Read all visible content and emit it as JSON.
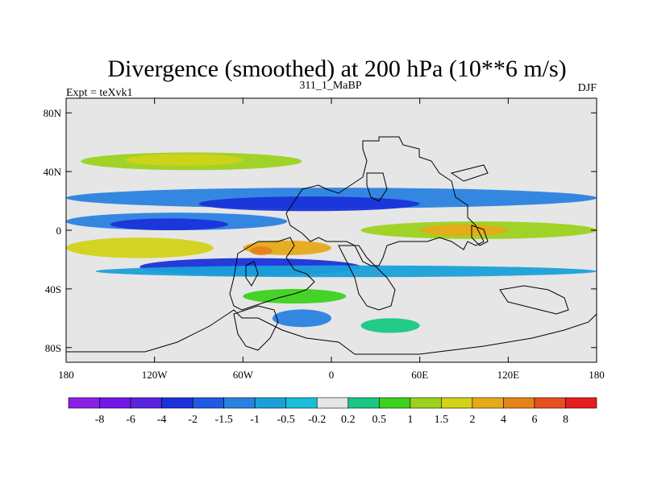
{
  "chart_data": {
    "type": "heatmap",
    "title": "Divergence (smoothed) at 200 hPa (10**6 m/s)",
    "subtitle": "311_1_MaBP",
    "left_label": "Expt = teXvk1",
    "right_label": "DJF",
    "x_axis": {
      "range": [
        -180,
        180
      ],
      "ticks": [
        {
          "value": -180,
          "label": "180"
        },
        {
          "value": -120,
          "label": "120W"
        },
        {
          "value": -60,
          "label": "60W"
        },
        {
          "value": 0,
          "label": "0"
        },
        {
          "value": 60,
          "label": "60E"
        },
        {
          "value": 120,
          "label": "120E"
        },
        {
          "value": 180,
          "label": "180"
        }
      ]
    },
    "y_axis": {
      "range": [
        -90,
        90
      ],
      "ticks": [
        {
          "value": 80,
          "label": "80N"
        },
        {
          "value": 40,
          "label": "40N"
        },
        {
          "value": 0,
          "label": "0"
        },
        {
          "value": -40,
          "label": "40S"
        },
        {
          "value": -80,
          "label": "80S"
        }
      ]
    },
    "colorbar": {
      "colors": [
        "#8c1fe6",
        "#7318e6",
        "#5a23e0",
        "#1a32d9",
        "#1f5ae6",
        "#2a82e0",
        "#1aa0d9",
        "#1abed9",
        "#e6e6e6",
        "#19c882",
        "#3cd21e",
        "#9bd21e",
        "#d2d219",
        "#e6aa19",
        "#e68219",
        "#e6501e",
        "#e61e1e"
      ],
      "labels": [
        "-8",
        "-6",
        "-4",
        "-2",
        "-1.5",
        "-1",
        "-0.5",
        "-0.2",
        "0.2",
        "0.5",
        "1",
        "1.5",
        "2",
        "4",
        "6",
        "8"
      ]
    },
    "bands": [
      {
        "lat_center": 47,
        "lat_half_width": 6,
        "lon_range": [
          -170,
          -20
        ],
        "value": 1.2
      },
      {
        "lat_center": 48,
        "lat_half_width": 4,
        "lon_range": [
          -140,
          -60
        ],
        "value": 1.8
      },
      {
        "lat_center": 22,
        "lat_half_width": 7,
        "lon_range": [
          -180,
          180
        ],
        "value": -1.0
      },
      {
        "lat_center": 18,
        "lat_half_width": 5,
        "lon_range": [
          -90,
          60
        ],
        "value": -2.5
      },
      {
        "lat_center": 6,
        "lat_half_width": 6,
        "lon_range": [
          -180,
          -30
        ],
        "value": -1.0
      },
      {
        "lat_center": 4,
        "lat_half_width": 4,
        "lon_range": [
          -150,
          -70
        ],
        "value": -2.0
      },
      {
        "lat_center": 0,
        "lat_half_width": 6,
        "lon_range": [
          20,
          180
        ],
        "value": 1.5
      },
      {
        "lat_center": 0,
        "lat_half_width": 4,
        "lon_range": [
          60,
          120
        ],
        "value": 4.0
      },
      {
        "lat_center": -12,
        "lat_half_width": 7,
        "lon_range": [
          -180,
          -80
        ],
        "value": 2.0
      },
      {
        "lat_center": -12,
        "lat_half_width": 5,
        "lon_range": [
          -60,
          0
        ],
        "value": 4.0
      },
      {
        "lat_center": -14,
        "lat_half_width": 3,
        "lon_range": [
          -55,
          -40
        ],
        "value": 6.0
      },
      {
        "lat_center": -25,
        "lat_half_width": 6,
        "lon_range": [
          -130,
          20
        ],
        "value": -2.0
      },
      {
        "lat_center": -28,
        "lat_half_width": 4,
        "lon_range": [
          -160,
          180
        ],
        "value": -0.5
      },
      {
        "lat_center": -45,
        "lat_half_width": 5,
        "lon_range": [
          -60,
          10
        ],
        "value": 1.0
      },
      {
        "lat_center": -60,
        "lat_half_width": 6,
        "lon_range": [
          -40,
          0
        ],
        "value": -1.0
      },
      {
        "lat_center": -65,
        "lat_half_width": 5,
        "lon_range": [
          20,
          60
        ],
        "value": 0.5
      }
    ]
  }
}
